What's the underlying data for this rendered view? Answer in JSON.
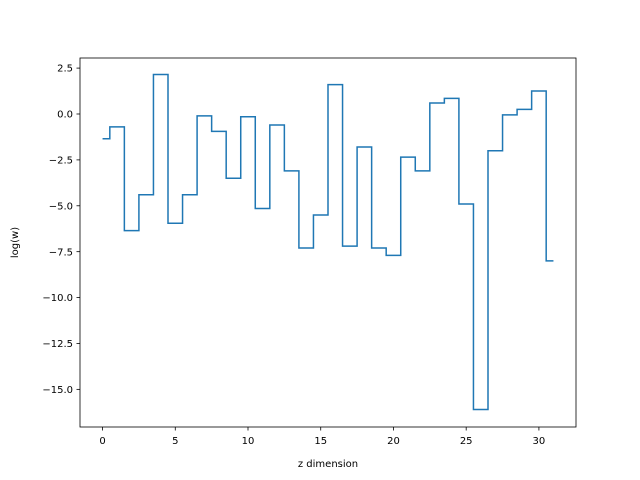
{
  "chart_data": {
    "type": "line",
    "drawstyle": "steps-mid",
    "xlabel": "z dimension",
    "ylabel": "log(w)",
    "xlim": [
      -1.55,
      32.55
    ],
    "ylim": [
      -17.05,
      3.05
    ],
    "xticks": [
      0,
      5,
      10,
      15,
      20,
      25,
      30
    ],
    "yticks": [
      2.5,
      0.0,
      -2.5,
      -5.0,
      -7.5,
      -10.0,
      -12.5,
      -15.0
    ],
    "xtick_labels": [
      "0",
      "5",
      "10",
      "15",
      "20",
      "25",
      "30"
    ],
    "ytick_labels": [
      "2.5",
      "0.0",
      "−2.5",
      "−5.0",
      "−7.5",
      "−10.0",
      "−12.5",
      "−15.0"
    ],
    "grid": false,
    "line_color": "#1f77b4",
    "series": [
      {
        "x": [
          0,
          1,
          2,
          3,
          4,
          5,
          6,
          7,
          8,
          9,
          10,
          11,
          12,
          13,
          14,
          15,
          16,
          17,
          18,
          19,
          20,
          21,
          22,
          23,
          24,
          25,
          26,
          27,
          28,
          29,
          30,
          31
        ],
        "values": [
          -1.35,
          -0.7,
          -6.35,
          -4.4,
          2.15,
          -5.95,
          -4.4,
          -0.1,
          -0.95,
          -3.5,
          -0.15,
          -5.15,
          -0.6,
          -3.1,
          -7.3,
          -5.5,
          1.6,
          -7.2,
          -1.8,
          -7.3,
          -7.7,
          -2.35,
          -3.1,
          0.6,
          0.85,
          -4.9,
          -16.1,
          -2.0,
          -0.05,
          0.25,
          1.25,
          -8.0
        ]
      }
    ]
  }
}
